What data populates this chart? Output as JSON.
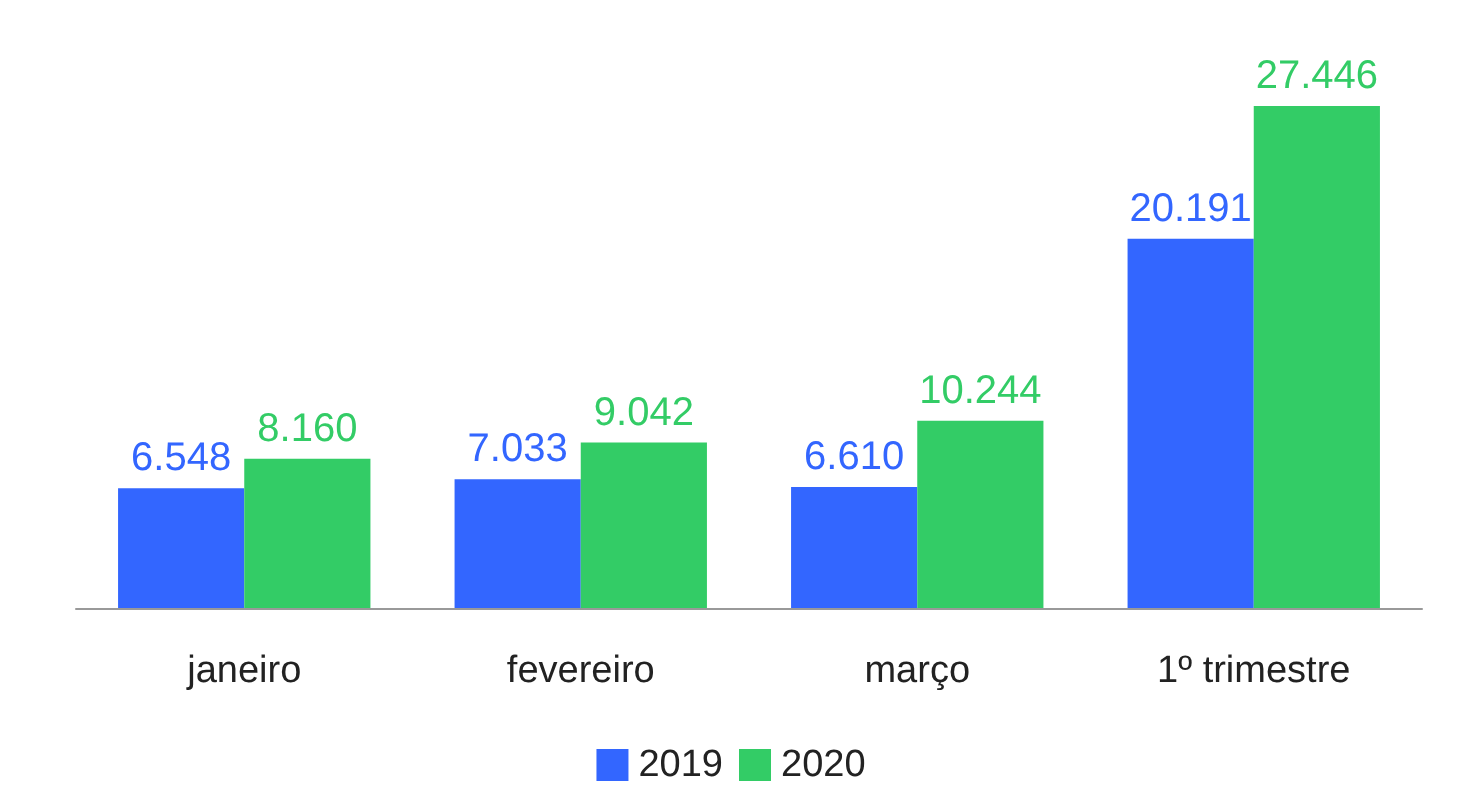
{
  "chart_data": {
    "type": "bar",
    "categories": [
      "janeiro",
      "fevereiro",
      "março",
      "1º trimestre"
    ],
    "series": [
      {
        "name": "2019",
        "color": "#3366ff",
        "values": [
          6548,
          7033,
          6610,
          20191
        ],
        "value_labels": [
          "6.548",
          "7.033",
          "6.610",
          "20.191"
        ]
      },
      {
        "name": "2020",
        "color": "#33cc66",
        "values": [
          8160,
          9042,
          10244,
          27446
        ],
        "value_labels": [
          "8.160",
          "9.042",
          "10.244",
          "27.446"
        ]
      }
    ],
    "legend": "bottom"
  }
}
